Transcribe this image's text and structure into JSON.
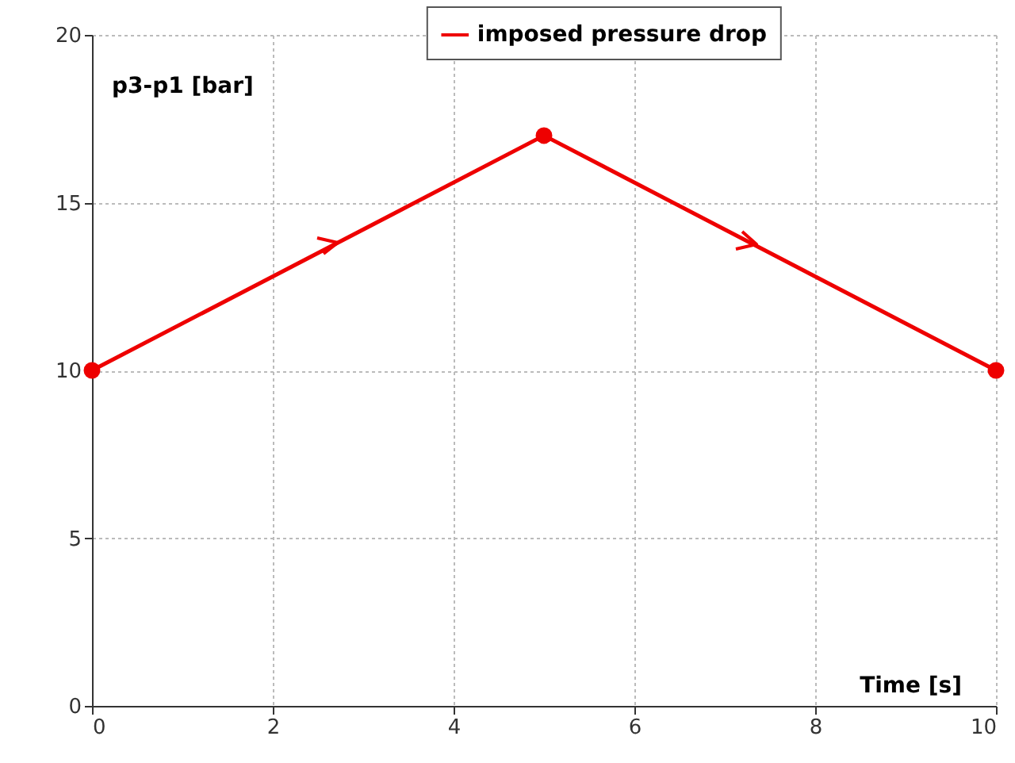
{
  "chart_data": {
    "type": "line",
    "xlabel": "Time [s]",
    "ylabel": "p3-p1 [bar]",
    "x": [
      0,
      5,
      10
    ],
    "series": [
      {
        "name": "imposed pressure drop",
        "color": "#ee0000",
        "values": [
          10,
          17,
          10
        ]
      }
    ],
    "xlim": [
      0,
      10
    ],
    "xticks": [
      0,
      2,
      4,
      6,
      8,
      10
    ],
    "ylim": [
      0,
      20
    ],
    "yticks": [
      0,
      5,
      10,
      15,
      20
    ],
    "grid": true,
    "legend": "top",
    "marker": "circle",
    "line_style": "solid"
  }
}
